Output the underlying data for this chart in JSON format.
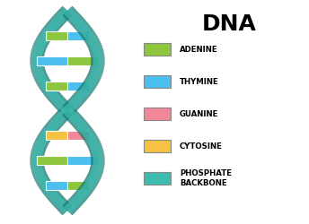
{
  "title": "DNA",
  "title_fontsize": 18,
  "title_fontweight": "bold",
  "legend_items": [
    {
      "label": "ADENINE",
      "color": "#8DC63F"
    },
    {
      "label": "THYMINE",
      "color": "#4BBFED"
    },
    {
      "label": "GUANINE",
      "color": "#F2879A"
    },
    {
      "label": "CYTOSINE",
      "color": "#F5C242"
    },
    {
      "label": "PHOSPHATE\nBACKBONE",
      "color": "#3DBCB0"
    }
  ],
  "backbone_color": "#3DBCB0",
  "backbone_edge_color": "#1A7A72",
  "rung_colors": [
    [
      "#8DC63F",
      "#4BBFED"
    ],
    [
      "#4BBFED",
      "#8DC63F"
    ],
    [
      "#F2879A",
      "#F5C242"
    ],
    [
      "#8DC63F",
      "#4BBFED"
    ],
    [
      "#4BBFED",
      "#8DC63F"
    ],
    [
      "#8DC63F",
      "#4BBFED"
    ]
  ],
  "fig_bg": "#FFFFFF"
}
